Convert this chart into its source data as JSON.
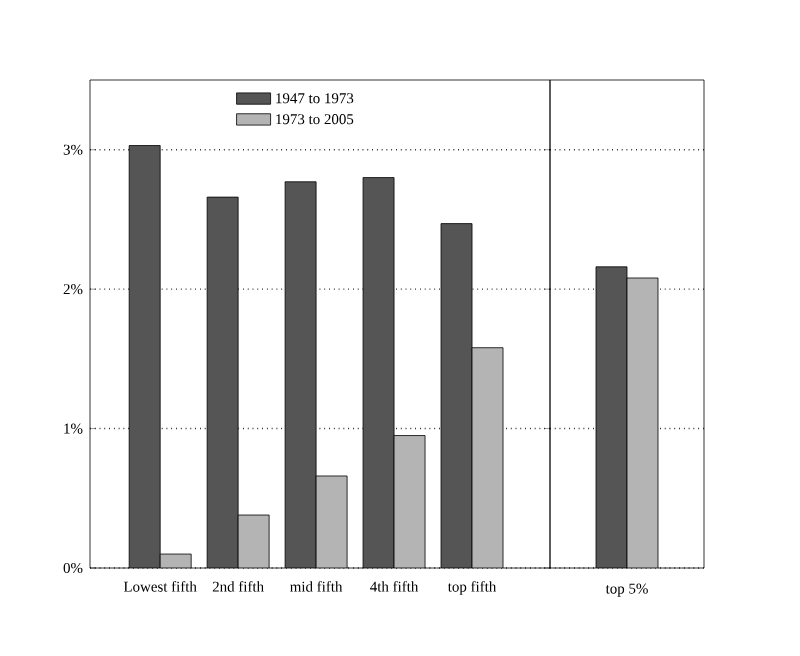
{
  "chart_data": [
    {
      "type": "bar",
      "categories": [
        "Lowest fifth",
        "2nd fifth",
        "mid fifth",
        "4th fifth",
        "top fifth"
      ],
      "series": [
        {
          "name": "1947 to 1973",
          "color": "#555555",
          "values": [
            3.03,
            2.66,
            2.77,
            2.8,
            2.47
          ]
        },
        {
          "name": "1973 to 2005",
          "color": "#b4b4b4",
          "values": [
            0.1,
            0.38,
            0.66,
            0.95,
            1.58
          ]
        }
      ],
      "ylim": [
        0,
        3.5
      ],
      "yticks": [
        {
          "value": 0,
          "label": "0%"
        },
        {
          "value": 1,
          "label": "1%"
        },
        {
          "value": 2,
          "label": "2%"
        },
        {
          "value": 3,
          "label": "3%"
        }
      ],
      "grid": "y",
      "legend": "top"
    },
    {
      "type": "bar",
      "categories": [
        "top 5%"
      ],
      "series": [
        {
          "color": "#555555",
          "values": [
            2.16
          ]
        },
        {
          "color": "#b4b4b4",
          "values": [
            2.08
          ]
        }
      ],
      "ylim": [
        0,
        3.5
      ],
      "yticks": [
        {
          "value": 0,
          "label": null
        },
        {
          "value": 1,
          "label": null
        },
        {
          "value": 2,
          "label": null
        },
        {
          "value": 3,
          "label": null
        }
      ],
      "grid": "y",
      "tick_labels": "x"
    }
  ]
}
